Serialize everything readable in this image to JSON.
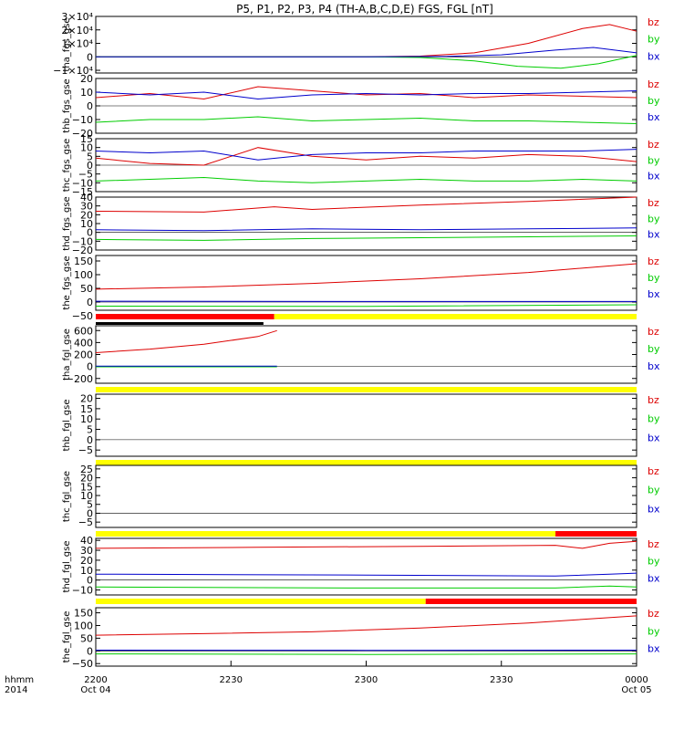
{
  "title": "P5, P1, P2, P3, P4 (TH-A,B,C,D,E) FGS, FGL [nT]",
  "time_axis": {
    "format_label": "hhmm",
    "year_label": "2014",
    "ticks": [
      {
        "label": "2200",
        "date": "Oct 04",
        "frac": 0
      },
      {
        "label": "2230",
        "date": "",
        "frac": 0.25
      },
      {
        "label": "2300",
        "date": "",
        "frac": 0.5
      },
      {
        "label": "2330",
        "date": "",
        "frac": 0.75
      },
      {
        "label": "0000",
        "date": "Oct 05",
        "frac": 1
      }
    ]
  },
  "colors": {
    "bx": "#0000cc",
    "by": "#00cc00",
    "bz": "#dd0000",
    "bar_yellow": "#ffff00",
    "bar_red": "#ff0000",
    "bar_black": "#000000"
  },
  "chart_data": [
    {
      "type": "line",
      "ylabel": "tha_fgs_gse",
      "ylim": [
        -12000,
        30000
      ],
      "log": false,
      "ticks": [
        {
          "v": 30000,
          "label": "3×10⁴"
        },
        {
          "v": 20000,
          "label": "2×10⁴"
        },
        {
          "v": 10000,
          "label": "1×10⁴"
        },
        {
          "v": 0,
          "label": "0"
        },
        {
          "v": -10000,
          "label": "−1×10⁴"
        }
      ],
      "legend": [
        "bz",
        "by",
        "bx"
      ],
      "series": [
        {
          "name": "bz",
          "x": [
            0,
            0.5,
            0.6,
            0.7,
            0.8,
            0.9,
            0.95,
            1
          ],
          "y": [
            0,
            0,
            500,
            3000,
            10000,
            21000,
            24000,
            19000
          ]
        },
        {
          "name": "by",
          "x": [
            0,
            0.5,
            0.6,
            0.7,
            0.78,
            0.86,
            0.93,
            1
          ],
          "y": [
            0,
            0,
            -500,
            -3000,
            -7000,
            -8500,
            -5000,
            1000
          ]
        },
        {
          "name": "bx",
          "x": [
            0,
            0.5,
            0.65,
            0.75,
            0.85,
            0.92,
            1
          ],
          "y": [
            0,
            0,
            300,
            1500,
            5000,
            7000,
            3000
          ]
        }
      ]
    },
    {
      "type": "line",
      "ylabel": "thb_fgs_gse",
      "ylim": [
        -20,
        20
      ],
      "log": false,
      "ticks": [
        {
          "v": 20,
          "label": "20"
        },
        {
          "v": 10,
          "label": "10"
        },
        {
          "v": 0,
          "label": "0"
        },
        {
          "v": -10,
          "label": "−10"
        },
        {
          "v": -20,
          "label": "−20"
        }
      ],
      "legend": [
        "bz",
        "by",
        "bx"
      ],
      "series": [
        {
          "name": "bz",
          "x": [
            0,
            0.1,
            0.2,
            0.3,
            0.4,
            0.5,
            0.6,
            0.7,
            0.8,
            0.9,
            1
          ],
          "y": [
            6,
            9,
            5,
            14,
            11,
            8,
            9,
            6,
            8,
            7,
            6
          ]
        },
        {
          "name": "by",
          "x": [
            0,
            0.1,
            0.2,
            0.3,
            0.4,
            0.5,
            0.6,
            0.7,
            0.8,
            0.9,
            1
          ],
          "y": [
            -12,
            -10,
            -10,
            -8,
            -11,
            -10,
            -9,
            -11,
            -11,
            -12,
            -13
          ]
        },
        {
          "name": "bx",
          "x": [
            0,
            0.1,
            0.2,
            0.3,
            0.4,
            0.5,
            0.6,
            0.7,
            0.8,
            0.9,
            1
          ],
          "y": [
            10,
            8,
            10,
            5,
            8,
            9,
            8,
            9,
            9,
            10,
            11
          ]
        }
      ]
    },
    {
      "type": "line",
      "ylabel": "thc_fgs_gse",
      "ylim": [
        -15,
        15
      ],
      "log": false,
      "ticks": [
        {
          "v": 15,
          "label": "15"
        },
        {
          "v": 10,
          "label": "10"
        },
        {
          "v": 5,
          "label": "5"
        },
        {
          "v": 0,
          "label": "0"
        },
        {
          "v": -5,
          "label": "−5"
        },
        {
          "v": -10,
          "label": "−10"
        },
        {
          "v": -15,
          "label": "−15"
        }
      ],
      "legend": [
        "bz",
        "by",
        "bx"
      ],
      "series": [
        {
          "name": "bz",
          "x": [
            0,
            0.1,
            0.2,
            0.3,
            0.4,
            0.5,
            0.6,
            0.7,
            0.8,
            0.9,
            1
          ],
          "y": [
            4,
            1,
            0,
            10,
            5,
            3,
            5,
            4,
            6,
            5,
            2
          ]
        },
        {
          "name": "by",
          "x": [
            0,
            0.1,
            0.2,
            0.3,
            0.4,
            0.5,
            0.6,
            0.7,
            0.8,
            0.9,
            1
          ],
          "y": [
            -9,
            -8,
            -7,
            -9,
            -10,
            -9,
            -8,
            -9,
            -9,
            -8,
            -9
          ]
        },
        {
          "name": "bx",
          "x": [
            0,
            0.1,
            0.2,
            0.3,
            0.4,
            0.5,
            0.6,
            0.7,
            0.8,
            0.9,
            1
          ],
          "y": [
            8,
            7,
            8,
            3,
            6,
            7,
            7,
            8,
            8,
            8,
            9
          ]
        }
      ]
    },
    {
      "type": "line",
      "ylabel": "thd_fgs_gse",
      "ylim": [
        -20,
        40
      ],
      "log": false,
      "ticks": [
        {
          "v": 40,
          "label": "40"
        },
        {
          "v": 30,
          "label": "30"
        },
        {
          "v": 20,
          "label": "20"
        },
        {
          "v": 10,
          "label": "10"
        },
        {
          "v": 0,
          "label": "0"
        },
        {
          "v": -10,
          "label": "−10"
        },
        {
          "v": -20,
          "label": "−20"
        }
      ],
      "legend": [
        "bz",
        "by",
        "bx"
      ],
      "series": [
        {
          "name": "bz",
          "x": [
            0,
            0.2,
            0.33,
            0.4,
            0.6,
            0.8,
            1
          ],
          "y": [
            24,
            23,
            29,
            26,
            31,
            35,
            40
          ]
        },
        {
          "name": "by",
          "x": [
            0,
            0.2,
            0.4,
            0.6,
            0.8,
            1
          ],
          "y": [
            -8,
            -9,
            -7,
            -6,
            -5,
            -4
          ]
        },
        {
          "name": "bx",
          "x": [
            0,
            0.2,
            0.4,
            0.6,
            0.8,
            1
          ],
          "y": [
            3,
            2,
            4,
            3,
            4,
            5
          ]
        }
      ]
    },
    {
      "type": "line",
      "ylabel": "the_fgs_gse",
      "ylim": [
        -30,
        170
      ],
      "log": false,
      "ticks": [
        {
          "v": 150,
          "label": "150"
        },
        {
          "v": 100,
          "label": "100"
        },
        {
          "v": 50,
          "label": "50"
        },
        {
          "v": 0,
          "label": "0"
        },
        {
          "v": -50,
          "label": "−50"
        }
      ],
      "legend": [
        "bz",
        "by",
        "bx"
      ],
      "series": [
        {
          "name": "bz",
          "x": [
            0,
            0.2,
            0.4,
            0.6,
            0.8,
            1
          ],
          "y": [
            47,
            55,
            68,
            85,
            108,
            140
          ]
        },
        {
          "name": "by",
          "x": [
            0,
            0.5,
            1
          ],
          "y": [
            -15,
            -16,
            -10
          ]
        },
        {
          "name": "bx",
          "x": [
            0,
            0.5,
            1
          ],
          "y": [
            3,
            2,
            2
          ]
        }
      ],
      "status_bars": [
        {
          "color": "bar_red",
          "from": 0,
          "to": 0.33
        },
        {
          "color": "bar_yellow",
          "from": 0.33,
          "to": 1
        }
      ]
    },
    {
      "type": "line",
      "ylabel": "tha_fgl_gse",
      "ylim": [
        -280,
        680
      ],
      "log": false,
      "ticks": [
        {
          "v": 600,
          "label": "600"
        },
        {
          "v": 400,
          "label": "400"
        },
        {
          "v": 200,
          "label": "200"
        },
        {
          "v": 0,
          "label": "0"
        },
        {
          "v": -200,
          "label": "−200"
        }
      ],
      "legend": [
        "bz",
        "by",
        "bx"
      ],
      "series": [
        {
          "name": "bz",
          "x": [
            0,
            0.1,
            0.2,
            0.3,
            0.335
          ],
          "y": [
            230,
            290,
            370,
            500,
            600
          ]
        },
        {
          "name": "by",
          "x": [
            0,
            0.335
          ],
          "y": [
            -5,
            -5
          ]
        },
        {
          "name": "bx",
          "x": [
            0,
            0.335
          ],
          "y": [
            5,
            5
          ]
        }
      ],
      "status_bars": [
        {
          "color": "bar_black",
          "from": 0,
          "to": 0.31,
          "row": "top"
        },
        {
          "color": "bar_yellow",
          "from": 0,
          "to": 1
        }
      ]
    },
    {
      "type": "line",
      "ylabel": "thb_fgl_gse",
      "ylim": [
        -8,
        22
      ],
      "log": false,
      "ticks": [
        {
          "v": 20,
          "label": "20"
        },
        {
          "v": 15,
          "label": "15"
        },
        {
          "v": 10,
          "label": "10"
        },
        {
          "v": 5,
          "label": "5"
        },
        {
          "v": 0,
          "label": "0"
        },
        {
          "v": -5,
          "label": "−5"
        }
      ],
      "legend": [
        "bz",
        "by",
        "bx"
      ],
      "series": [],
      "status_bars": [
        {
          "color": "bar_yellow",
          "from": 0,
          "to": 1
        }
      ]
    },
    {
      "type": "line",
      "ylabel": "thc_fgl_gse",
      "ylim": [
        -8,
        27
      ],
      "log": false,
      "ticks": [
        {
          "v": 25,
          "label": "25"
        },
        {
          "v": 20,
          "label": "20"
        },
        {
          "v": 15,
          "label": "15"
        },
        {
          "v": 10,
          "label": "10"
        },
        {
          "v": 5,
          "label": "5"
        },
        {
          "v": 0,
          "label": "0"
        },
        {
          "v": -5,
          "label": "−5"
        }
      ],
      "legend": [
        "bz",
        "by",
        "bx"
      ],
      "series": [],
      "status_bars": [
        {
          "color": "bar_yellow",
          "from": 0,
          "to": 0.85
        },
        {
          "color": "bar_red",
          "from": 0.85,
          "to": 1
        }
      ]
    },
    {
      "type": "line",
      "ylabel": "thd_fgl_gse",
      "ylim": [
        -15,
        42
      ],
      "log": false,
      "ticks": [
        {
          "v": 40,
          "label": "40"
        },
        {
          "v": 30,
          "label": "30"
        },
        {
          "v": 20,
          "label": "20"
        },
        {
          "v": 10,
          "label": "10"
        },
        {
          "v": 0,
          "label": "0"
        },
        {
          "v": -10,
          "label": "−10"
        }
      ],
      "legend": [
        "bz",
        "by",
        "bx"
      ],
      "series": [
        {
          "name": "bz",
          "x": [
            0,
            0.3,
            0.6,
            0.85,
            0.9,
            0.95,
            1
          ],
          "y": [
            32,
            33,
            34,
            35,
            32,
            37,
            39
          ]
        },
        {
          "name": "by",
          "x": [
            0,
            0.5,
            0.85,
            0.95,
            1
          ],
          "y": [
            -7,
            -8,
            -8,
            -6,
            -7
          ]
        },
        {
          "name": "bx",
          "x": [
            0,
            0.5,
            0.85,
            0.95,
            1
          ],
          "y": [
            6,
            5,
            4,
            6,
            7
          ]
        }
      ],
      "status_bars": [
        {
          "color": "bar_yellow",
          "from": 0,
          "to": 0.61
        },
        {
          "color": "bar_red",
          "from": 0.61,
          "to": 1
        }
      ]
    },
    {
      "type": "line",
      "ylabel": "the_fgl_gse",
      "ylim": [
        -60,
        170
      ],
      "log": false,
      "ticks": [
        {
          "v": 150,
          "label": "150"
        },
        {
          "v": 100,
          "label": "100"
        },
        {
          "v": 50,
          "label": "50"
        },
        {
          "v": 0,
          "label": "0"
        },
        {
          "v": -50,
          "label": "−50"
        }
      ],
      "legend": [
        "bz",
        "by",
        "bx"
      ],
      "series": [
        {
          "name": "bz",
          "x": [
            0,
            0.2,
            0.4,
            0.6,
            0.8,
            1
          ],
          "y": [
            62,
            68,
            75,
            90,
            110,
            138
          ]
        },
        {
          "name": "by",
          "x": [
            0,
            0.5,
            1
          ],
          "y": [
            -12,
            -14,
            -12
          ]
        },
        {
          "name": "bx",
          "x": [
            0,
            0.5,
            1
          ],
          "y": [
            3,
            2,
            3
          ]
        }
      ]
    }
  ]
}
